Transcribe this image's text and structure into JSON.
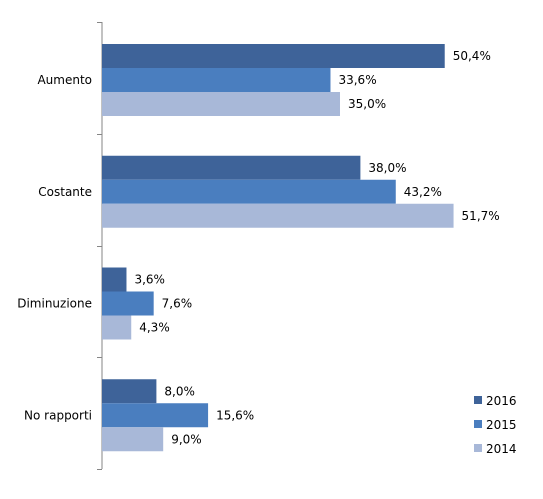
{
  "chart_data": {
    "type": "bar",
    "orientation": "horizontal",
    "categories": [
      "Aumento",
      "Costante",
      "Diminuzione",
      "No rapporti"
    ],
    "series": [
      {
        "name": "2016",
        "color": "#3e6399",
        "values": [
          50.4,
          38.0,
          3.6,
          8.0
        ],
        "labels": [
          "50,4%",
          "38,0%",
          "3,6%",
          "8,0%"
        ]
      },
      {
        "name": "2015",
        "color": "#4a7ebf",
        "values": [
          33.6,
          43.2,
          7.6,
          15.6
        ],
        "labels": [
          "33,6%",
          "43,2%",
          "7,6%",
          "15,6%"
        ]
      },
      {
        "name": "2014",
        "color": "#a8b8d8",
        "values": [
          35.0,
          51.7,
          4.3,
          9.0
        ],
        "labels": [
          "35,0%",
          "51,7%",
          "4,3%",
          "9,0%"
        ]
      }
    ],
    "xlim": [
      0,
      60
    ],
    "grid": false,
    "legend_position": "bottom-right",
    "title": "",
    "xlabel": "",
    "ylabel": ""
  }
}
